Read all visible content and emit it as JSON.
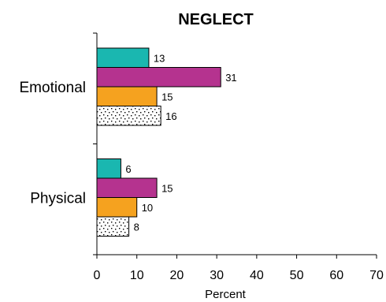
{
  "chart_data": {
    "type": "bar",
    "orientation": "horizontal",
    "title": "NEGLECT",
    "xlabel": "Percent",
    "ylabel": "",
    "categories": [
      "Emotional",
      "Physical"
    ],
    "series": [
      {
        "values": [
          13,
          6
        ],
        "color": "#1ab7b0",
        "pattern": "solid"
      },
      {
        "values": [
          31,
          15
        ],
        "color": "#b5338f",
        "pattern": "solid"
      },
      {
        "values": [
          15,
          10
        ],
        "color": "#f5a21f",
        "pattern": "solid"
      },
      {
        "values": [
          16,
          8
        ],
        "color": "#ffffff",
        "pattern": "dots"
      }
    ],
    "xlim": [
      0,
      70
    ],
    "xticks": [
      "0",
      "10",
      "20",
      "30",
      "40",
      "50",
      "60",
      "70"
    ],
    "data_labels": true,
    "grid": false,
    "legend": "none"
  }
}
